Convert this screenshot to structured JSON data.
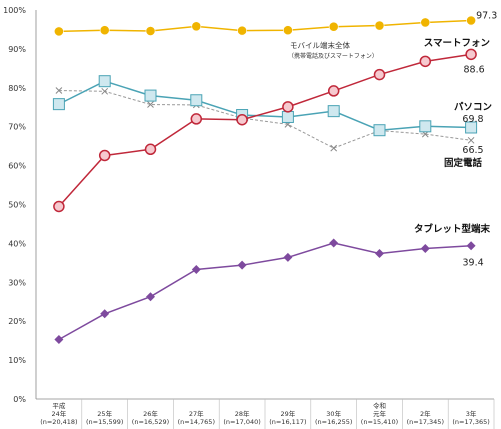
{
  "chart_data": {
    "type": "line",
    "ylim": [
      0,
      100
    ],
    "y_ticks": [
      "0%",
      "10%",
      "20%",
      "30%",
      "40%",
      "50%",
      "60%",
      "70%",
      "80%",
      "90%",
      "100%"
    ],
    "categories": [
      {
        "era": "平成",
        "year": "24年",
        "n": "(n=20,418)"
      },
      {
        "era": "",
        "year": "25年",
        "n": "(n=15,599)"
      },
      {
        "era": "",
        "year": "26年",
        "n": "(n=16,529)"
      },
      {
        "era": "",
        "year": "27年",
        "n": "(n=14,765)"
      },
      {
        "era": "",
        "year": "28年",
        "n": "(n=17,040)"
      },
      {
        "era": "",
        "year": "29年",
        "n": "(n=16,117)"
      },
      {
        "era": "",
        "year": "30年",
        "n": "(n=16,255)"
      },
      {
        "era": "令和",
        "year": "元年",
        "n": "(n=15,410)"
      },
      {
        "era": "",
        "year": "2年",
        "n": "(n=17,345)"
      },
      {
        "era": "",
        "year": "3年",
        "n": "(n=17,365)"
      }
    ],
    "series": [
      {
        "name": "モバイル端末全体",
        "sub": "（携帯電話及びスマートフォン）",
        "color": "#f0b400",
        "marker": "circle",
        "dashed": false,
        "values": [
          94.5,
          94.8,
          94.6,
          95.8,
          94.7,
          94.8,
          95.7,
          96.0,
          96.8,
          97.3
        ],
        "last_label": "97.3"
      },
      {
        "name": "スマートフォン",
        "color": "#c0283a",
        "marker": "circle-open",
        "dashed": false,
        "values": [
          49.5,
          62.6,
          64.2,
          72.0,
          71.8,
          75.1,
          79.2,
          83.4,
          86.8,
          88.6
        ],
        "last_label": "88.6"
      },
      {
        "name": "パソコン",
        "color": "#4aa3b5",
        "marker": "square",
        "dashed": false,
        "values": [
          75.8,
          81.7,
          78.0,
          76.8,
          73.0,
          72.5,
          74.0,
          69.1,
          70.1,
          69.8
        ],
        "last_label": "69.8"
      },
      {
        "name": "固定電話",
        "color": "#999999",
        "marker": "x",
        "dashed": true,
        "values": [
          79.3,
          79.1,
          75.7,
          75.6,
          72.2,
          70.6,
          64.5,
          69.0,
          68.1,
          66.5
        ],
        "last_label": "66.5"
      },
      {
        "name": "タブレット型端末",
        "color": "#7e4a9e",
        "marker": "diamond",
        "dashed": false,
        "values": [
          15.3,
          21.9,
          26.3,
          33.3,
          34.4,
          36.4,
          40.1,
          37.4,
          38.7,
          39.4
        ],
        "last_label": "39.4"
      }
    ]
  }
}
